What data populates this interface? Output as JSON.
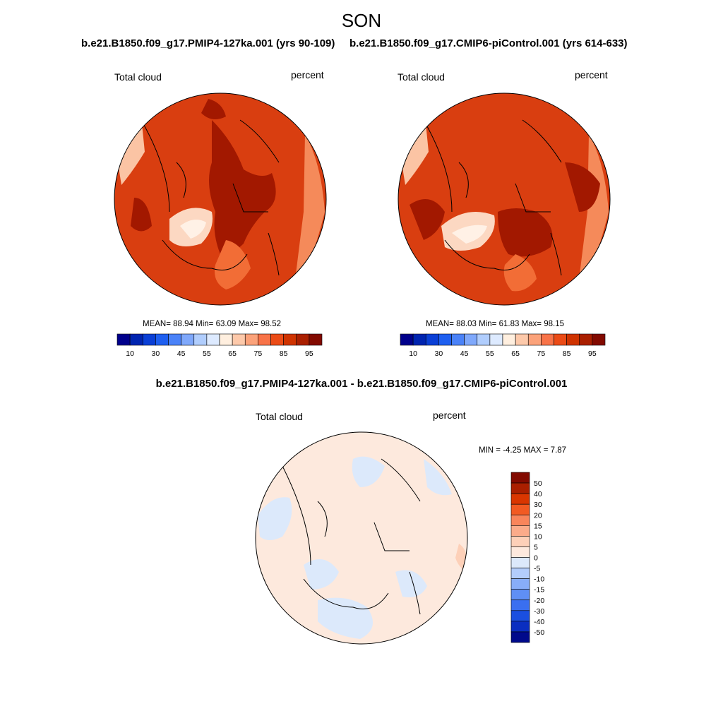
{
  "figure": {
    "season": "SON",
    "variable": "Total cloud",
    "units": "percent"
  },
  "panels": [
    {
      "id": "panel-a",
      "title": "b.e21.B1850.f09_g17.PMIP4-127ka.001 (yrs 90-109)",
      "stats": {
        "mean_label": "MEAN=",
        "mean": "88.94",
        "min_label": "Min=",
        "min": "63.09",
        "max_label": "Max=",
        "max": "98.52"
      }
    },
    {
      "id": "panel-b",
      "title": "b.e21.B1850.f09_g17.CMIP6-piControl.001 (yrs 614-633)",
      "stats": {
        "mean_label": "MEAN=",
        "mean": "88.03",
        "min_label": "Min=",
        "min": "61.83",
        "max_label": "Max=",
        "max": "98.15"
      }
    },
    {
      "id": "panel-diff",
      "title": "b.e21.B1850.f09_g17.PMIP4-127ka.001 - b.e21.B1850.f09_g17.CMIP6-piControl.001",
      "stats": {
        "min_label": "MIN =",
        "min": "-4.25",
        "max_label": "MAX =",
        "max": "7.87"
      }
    }
  ],
  "chart_data": [
    {
      "type": "heatmap",
      "projection": "north-polar-stereographic",
      "title": "b.e21.B1850.f09_g17.PMIP4-127ka.001 (yrs 90-109)",
      "variable": "Total cloud",
      "units": "percent",
      "mean": 88.94,
      "min": 63.09,
      "max": 98.52,
      "colorbar": {
        "orientation": "horizontal",
        "levels": [
          5,
          10,
          20,
          30,
          40,
          45,
          50,
          55,
          60,
          65,
          70,
          75,
          80,
          85,
          90,
          95
        ],
        "tick_labels": [
          "10",
          "30",
          "45",
          "55",
          "65",
          "75",
          "85",
          "95"
        ],
        "colors": [
          "#00008b",
          "#0024b0",
          "#0a3fd6",
          "#1e5ff0",
          "#4a82f8",
          "#7fa8fb",
          "#b0cdfd",
          "#ddeaff",
          "#ffefdf",
          "#fdc9aa",
          "#fba27a",
          "#f87348",
          "#eb4b16",
          "#cf3300",
          "#aa1f00",
          "#820a00"
        ]
      }
    },
    {
      "type": "heatmap",
      "projection": "north-polar-stereographic",
      "title": "b.e21.B1850.f09_g17.CMIP6-piControl.001 (yrs 614-633)",
      "variable": "Total cloud",
      "units": "percent",
      "mean": 88.03,
      "min": 61.83,
      "max": 98.15,
      "colorbar": {
        "orientation": "horizontal",
        "levels": [
          5,
          10,
          20,
          30,
          40,
          45,
          50,
          55,
          60,
          65,
          70,
          75,
          80,
          85,
          90,
          95
        ],
        "tick_labels": [
          "10",
          "30",
          "45",
          "55",
          "65",
          "75",
          "85",
          "95"
        ],
        "colors": [
          "#00008b",
          "#0024b0",
          "#0a3fd6",
          "#1e5ff0",
          "#4a82f8",
          "#7fa8fb",
          "#b0cdfd",
          "#ddeaff",
          "#ffefdf",
          "#fdc9aa",
          "#fba27a",
          "#f87348",
          "#eb4b16",
          "#cf3300",
          "#aa1f00",
          "#820a00"
        ]
      }
    },
    {
      "type": "heatmap",
      "projection": "north-polar-stereographic",
      "title": "b.e21.B1850.f09_g17.PMIP4-127ka.001 - b.e21.B1850.f09_g17.CMIP6-piControl.001",
      "variable": "Total cloud",
      "units": "percent",
      "min": -4.25,
      "max": 7.87,
      "colorbar": {
        "orientation": "vertical",
        "tick_labels": [
          "50",
          "40",
          "30",
          "20",
          "15",
          "10",
          "5",
          "0",
          "-5",
          "-10",
          "-15",
          "-20",
          "-30",
          "-40",
          "-50"
        ],
        "colors": [
          "#820a00",
          "#aa1f00",
          "#d93600",
          "#f25a22",
          "#f9855b",
          "#fbab8a",
          "#fdd0b8",
          "#fde9dd",
          "#dce9fb",
          "#b3cdfb",
          "#88adf8",
          "#5f8ff5",
          "#3a6ff0",
          "#1a4fe0",
          "#0a2ec0",
          "#000a8b"
        ]
      }
    }
  ]
}
